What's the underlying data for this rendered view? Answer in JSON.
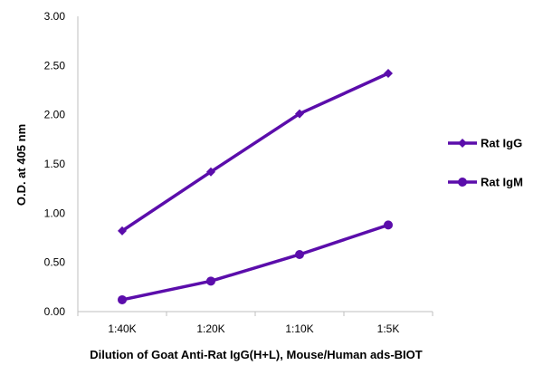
{
  "chart_data": {
    "type": "line",
    "categories": [
      "1:40K",
      "1:20K",
      "1:10K",
      "1:5K"
    ],
    "series": [
      {
        "name": "Rat IgG",
        "values": [
          0.82,
          1.42,
          2.01,
          2.42
        ],
        "marker": "diamond",
        "color": "#5B0DAB"
      },
      {
        "name": "Rat IgM",
        "values": [
          0.12,
          0.31,
          0.58,
          0.88
        ],
        "marker": "circle",
        "color": "#5B0DAB"
      }
    ],
    "title": "",
    "xlabel": "Dilution of Goat Anti-Rat IgG(H+L), Mouse/Human ads-BIOT",
    "ylabel": "O.D. at 405 nm",
    "ylim": [
      0,
      3
    ],
    "yticks": [
      "0.00",
      "0.50",
      "1.00",
      "1.50",
      "2.00",
      "2.50",
      "3.00"
    ],
    "grid": false,
    "legend": "right"
  }
}
